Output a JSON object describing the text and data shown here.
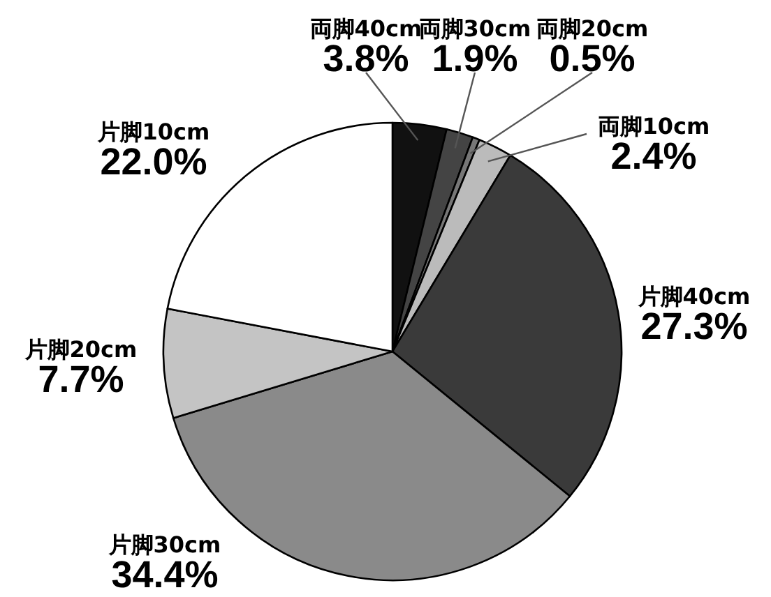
{
  "chart_data": {
    "type": "pie",
    "categories": [
      "両脚40cm",
      "両脚30cm",
      "両脚20cm",
      "両脚10cm",
      "片脚40cm",
      "片脚30cm",
      "片脚20cm",
      "片脚10cm"
    ],
    "values": [
      3.8,
      1.9,
      0.5,
      2.4,
      27.3,
      34.4,
      7.7,
      22.0
    ],
    "colors": [
      "#111111",
      "#444444",
      "#777777",
      "#bbbbbb",
      "#3a3a3a",
      "#8a8a8a",
      "#c4c4c4",
      "#ffffff"
    ],
    "value_labels": [
      "3.8%",
      "1.9%",
      "0.5%",
      "2.4%",
      "27.3%",
      "34.4%",
      "7.7%",
      "22.0%"
    ]
  }
}
